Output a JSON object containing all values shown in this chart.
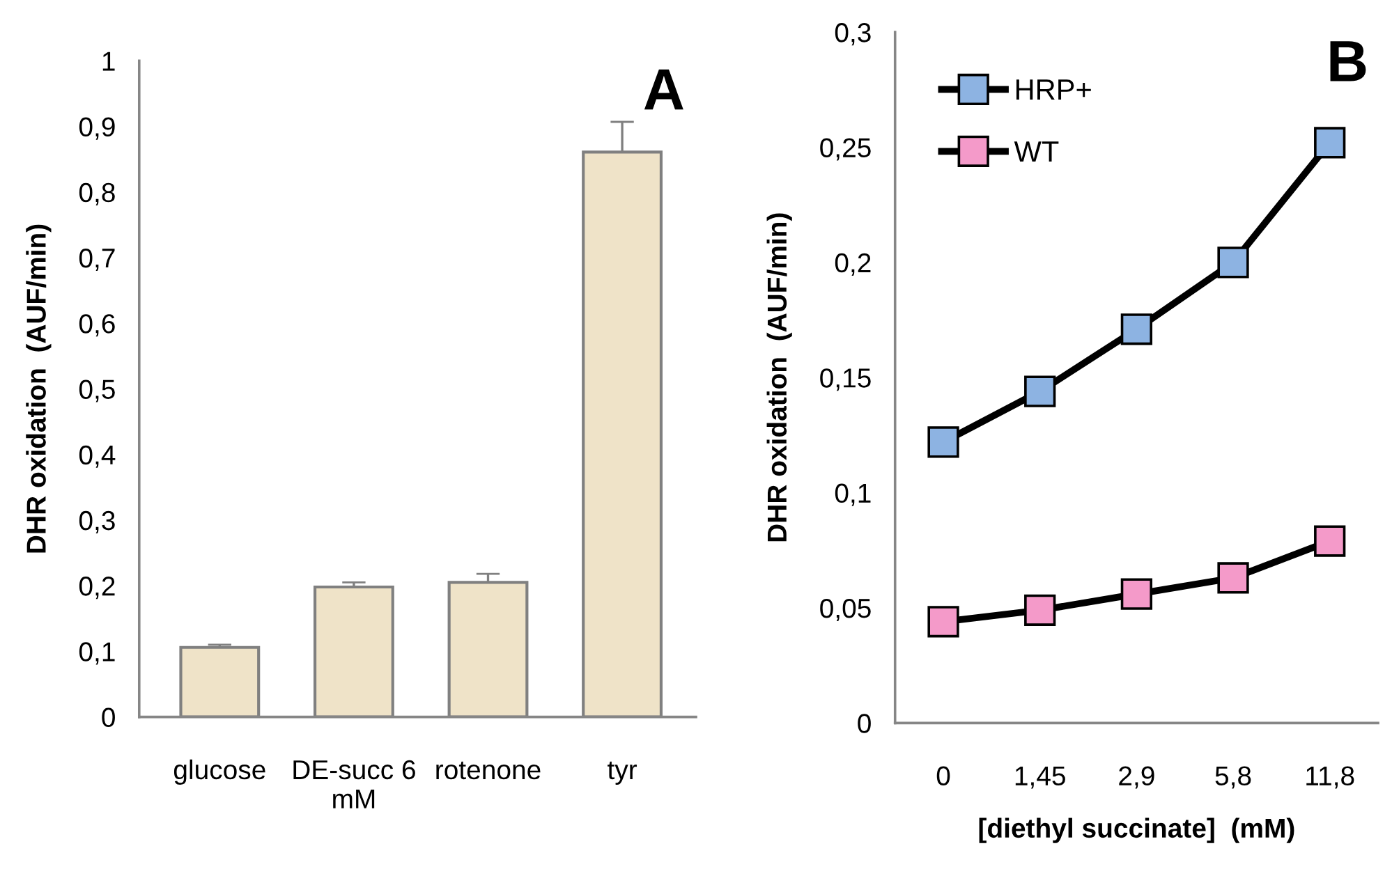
{
  "chart_data": [
    {
      "type": "bar",
      "ylabel": "DHR oxidation  (AUF/min)",
      "annotations": [
        "A"
      ],
      "categories": [
        "glucose",
        "DE-succ 6 mM",
        "rotenone",
        "tyr"
      ],
      "values": [
        0.106,
        0.198,
        0.205,
        0.861
      ],
      "errors": [
        [
          0.106,
          0.11
        ],
        [
          0.198,
          0.205
        ],
        [
          0.205,
          0.218
        ],
        [
          0.861,
          0.907
        ]
      ],
      "color": "#efe3c8",
      "ylim": [
        0,
        1
      ],
      "yticks": [
        0,
        {
          "value": 0.1,
          "label": "0,1"
        },
        {
          "value": 0.2,
          "label": "0,2"
        },
        {
          "value": 0.3,
          "label": "0,3"
        },
        {
          "value": 0.4,
          "label": "0,4"
        },
        {
          "value": 0.5,
          "label": "0,5"
        },
        {
          "value": 0.6,
          "label": "0,6"
        },
        {
          "value": 0.7,
          "label": "0,7"
        },
        {
          "value": 0.8,
          "label": "0,8"
        },
        {
          "value": 0.9,
          "label": "0,9"
        },
        1
      ],
      "grid": false
    },
    {
      "type": "line",
      "ylabel": "DHR oxidation  (AUF/min)",
      "xlabel": "[diethyl succinate]  (mM)",
      "annotations": [
        "B"
      ],
      "categories": [
        "0",
        "1,45",
        "2,9",
        "5,8",
        "11,8"
      ],
      "series": [
        {
          "name": "HRP+",
          "color": "#8db3e2",
          "values": [
            0.122,
            0.144,
            0.171,
            0.2,
            0.252
          ]
        },
        {
          "name": "WT",
          "color": "#f49ac9",
          "values": [
            0.044,
            0.049,
            0.056,
            0.063,
            0.079
          ]
        }
      ],
      "ylim": [
        0,
        0.3
      ],
      "yticks": [
        0,
        {
          "value": 0.05,
          "label": "0,05"
        },
        {
          "value": 0.1,
          "label": "0,1"
        },
        {
          "value": 0.15,
          "label": "0,15"
        },
        {
          "value": 0.2,
          "label": "0,2"
        },
        {
          "value": 0.25,
          "label": "0,25"
        },
        {
          "value": 0.3,
          "label": "0,3"
        }
      ],
      "marker": "square",
      "line_style": "solid",
      "grid": false,
      "legend": "top left"
    }
  ]
}
